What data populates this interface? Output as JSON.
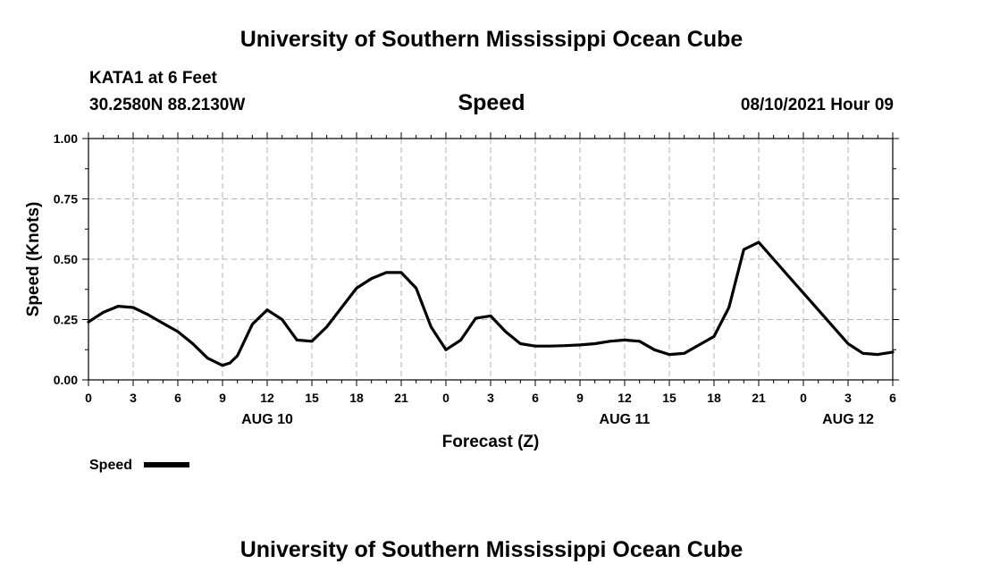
{
  "page": {
    "top_title": "University of Southern Mississippi Ocean Cube",
    "bottom_title": "University of Southern Mississippi Ocean Cube",
    "station": "KATA1 at 6 Feet",
    "coords": "30.2580N  88.2130W",
    "variable": "Speed",
    "datetime": "08/10/2021 Hour 09"
  },
  "chart_data": {
    "type": "line",
    "title": "Speed",
    "xlabel": "Forecast (Z)",
    "ylabel": "Speed (Knots)",
    "xlim": [
      0,
      54
    ],
    "ylim": [
      0,
      1.0
    ],
    "grid": true,
    "x_ticks": [
      0,
      3,
      6,
      9,
      12,
      15,
      18,
      21,
      24,
      27,
      30,
      33,
      36,
      39,
      42,
      45,
      48,
      51,
      54
    ],
    "x_tick_labels": [
      "0",
      "3",
      "6",
      "9",
      "12",
      "15",
      "18",
      "21",
      "0",
      "3",
      "6",
      "9",
      "12",
      "15",
      "18",
      "21",
      "0",
      "3",
      "6"
    ],
    "y_ticks": [
      0,
      0.25,
      0.5,
      0.75,
      1.0
    ],
    "y_tick_labels": [
      "0.00",
      "0.25",
      "0.50",
      "0.75",
      "1.00"
    ],
    "date_labels": [
      {
        "x": 12,
        "label": "AUG 10"
      },
      {
        "x": 36,
        "label": "AUG 11"
      },
      {
        "x": 51,
        "label": "AUG 12"
      }
    ],
    "legend": {
      "label": "Speed",
      "placement": "bottom-left"
    },
    "series": [
      {
        "name": "Speed",
        "color": "#000000",
        "x": [
          0,
          1,
          2,
          3,
          4,
          5,
          6,
          7,
          8,
          9,
          9.5,
          10,
          11,
          12,
          13,
          14,
          15,
          16,
          17,
          18,
          19,
          20,
          21,
          22,
          23,
          24,
          25,
          26,
          27,
          28,
          29,
          30,
          31,
          32,
          33,
          34,
          35,
          36,
          37,
          38,
          39,
          40,
          41,
          42,
          43,
          44,
          45,
          46,
          47,
          48,
          49,
          50,
          51,
          52,
          53,
          54
        ],
        "values": [
          0.24,
          0.28,
          0.305,
          0.3,
          0.27,
          0.235,
          0.2,
          0.15,
          0.09,
          0.06,
          0.07,
          0.1,
          0.23,
          0.29,
          0.25,
          0.165,
          0.16,
          0.22,
          0.3,
          0.38,
          0.42,
          0.445,
          0.445,
          0.38,
          0.22,
          0.125,
          0.165,
          0.255,
          0.265,
          0.2,
          0.15,
          0.14,
          0.14,
          0.142,
          0.145,
          0.15,
          0.16,
          0.165,
          0.16,
          0.125,
          0.105,
          0.11,
          0.145,
          0.18,
          0.3,
          0.54,
          0.57,
          0.5,
          0.43,
          0.36,
          0.29,
          0.22,
          0.15,
          0.11,
          0.105,
          0.115
        ]
      }
    ]
  }
}
